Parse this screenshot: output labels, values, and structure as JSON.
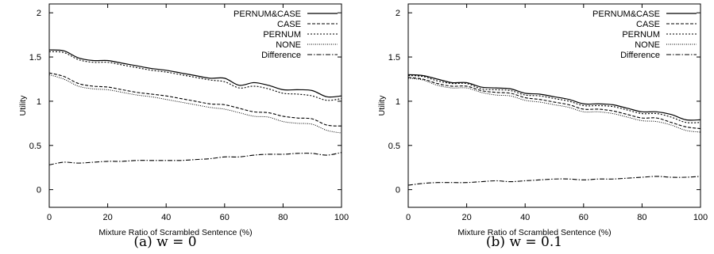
{
  "chart_data": [
    {
      "type": "line",
      "caption": "(a) w = 0",
      "xlabel": "Mixture Ratio of Scrambled Sentence (%)",
      "ylabel": "Utility",
      "xlim": [
        0,
        100
      ],
      "ylim": [
        -0.2,
        2.1
      ],
      "xticks": [
        0,
        20,
        40,
        60,
        80,
        100
      ],
      "yticks": [
        0,
        0.5,
        1,
        1.5,
        2
      ],
      "ytick_labels": [
        "0",
        "0.5",
        "1",
        "1.5",
        "2"
      ],
      "legend_position": "top-right",
      "x": [
        0,
        5,
        10,
        15,
        20,
        25,
        30,
        35,
        40,
        45,
        50,
        55,
        60,
        65,
        70,
        75,
        80,
        85,
        90,
        95,
        100
      ],
      "series": [
        {
          "name": "PERNUM&CASE",
          "style": "solid",
          "values": [
            1.58,
            1.57,
            1.49,
            1.46,
            1.46,
            1.43,
            1.4,
            1.37,
            1.35,
            1.32,
            1.29,
            1.26,
            1.26,
            1.18,
            1.21,
            1.18,
            1.13,
            1.13,
            1.12,
            1.05,
            1.06
          ]
        },
        {
          "name": "CASE",
          "style": "dashed",
          "values": [
            1.32,
            1.28,
            1.2,
            1.17,
            1.16,
            1.13,
            1.1,
            1.08,
            1.06,
            1.03,
            1.0,
            0.97,
            0.96,
            0.92,
            0.88,
            0.87,
            0.83,
            0.81,
            0.8,
            0.73,
            0.72
          ]
        },
        {
          "name": "PERNUM",
          "style": "dotted",
          "values": [
            1.56,
            1.55,
            1.47,
            1.44,
            1.44,
            1.41,
            1.38,
            1.35,
            1.33,
            1.3,
            1.27,
            1.24,
            1.22,
            1.15,
            1.17,
            1.14,
            1.09,
            1.08,
            1.06,
            1.01,
            1.03
          ]
        },
        {
          "name": "NONE",
          "style": "fine-dotted",
          "values": [
            1.3,
            1.25,
            1.17,
            1.14,
            1.13,
            1.1,
            1.07,
            1.05,
            1.02,
            0.99,
            0.96,
            0.93,
            0.91,
            0.87,
            0.83,
            0.82,
            0.77,
            0.75,
            0.74,
            0.67,
            0.64
          ]
        },
        {
          "name": "Difference",
          "style": "dash-dot",
          "values": [
            0.28,
            0.31,
            0.3,
            0.31,
            0.32,
            0.32,
            0.33,
            0.33,
            0.33,
            0.33,
            0.34,
            0.35,
            0.37,
            0.37,
            0.39,
            0.4,
            0.4,
            0.41,
            0.41,
            0.39,
            0.42
          ]
        }
      ]
    },
    {
      "type": "line",
      "caption": "(b) w = 0.1",
      "xlabel": "Mixture Ratio of Scrambled Sentence (%)",
      "ylabel": "Utility",
      "xlim": [
        0,
        100
      ],
      "ylim": [
        -0.2,
        2.1
      ],
      "xticks": [
        0,
        20,
        40,
        60,
        80,
        100
      ],
      "yticks": [
        0,
        0.5,
        1,
        1.5,
        2
      ],
      "ytick_labels": [
        "0",
        "0.5",
        "1",
        "1.5",
        "2"
      ],
      "legend_position": "top-right",
      "x": [
        0,
        5,
        10,
        15,
        20,
        25,
        30,
        35,
        40,
        45,
        50,
        55,
        60,
        65,
        70,
        75,
        80,
        85,
        90,
        95,
        100
      ],
      "series": [
        {
          "name": "PERNUM&CASE",
          "style": "solid",
          "values": [
            1.3,
            1.29,
            1.25,
            1.21,
            1.21,
            1.16,
            1.15,
            1.14,
            1.09,
            1.08,
            1.05,
            1.02,
            0.97,
            0.97,
            0.96,
            0.92,
            0.88,
            0.88,
            0.85,
            0.79,
            0.79
          ]
        },
        {
          "name": "CASE",
          "style": "dashed",
          "values": [
            1.27,
            1.25,
            1.2,
            1.17,
            1.17,
            1.12,
            1.1,
            1.09,
            1.04,
            1.02,
            0.99,
            0.96,
            0.91,
            0.91,
            0.89,
            0.85,
            0.81,
            0.81,
            0.76,
            0.71,
            0.69
          ]
        },
        {
          "name": "PERNUM",
          "style": "dotted",
          "values": [
            1.29,
            1.28,
            1.23,
            1.2,
            1.2,
            1.14,
            1.13,
            1.12,
            1.07,
            1.06,
            1.03,
            1.0,
            0.95,
            0.95,
            0.94,
            0.9,
            0.86,
            0.86,
            0.82,
            0.76,
            0.76
          ]
        },
        {
          "name": "NONE",
          "style": "fine-dotted",
          "values": [
            1.26,
            1.24,
            1.18,
            1.15,
            1.15,
            1.1,
            1.07,
            1.06,
            1.01,
            0.99,
            0.96,
            0.93,
            0.88,
            0.88,
            0.86,
            0.82,
            0.78,
            0.77,
            0.73,
            0.67,
            0.65
          ]
        },
        {
          "name": "Difference",
          "style": "dash-dot",
          "values": [
            0.05,
            0.07,
            0.08,
            0.08,
            0.08,
            0.09,
            0.1,
            0.09,
            0.1,
            0.11,
            0.12,
            0.12,
            0.11,
            0.12,
            0.12,
            0.13,
            0.14,
            0.15,
            0.14,
            0.14,
            0.15
          ]
        }
      ]
    }
  ]
}
